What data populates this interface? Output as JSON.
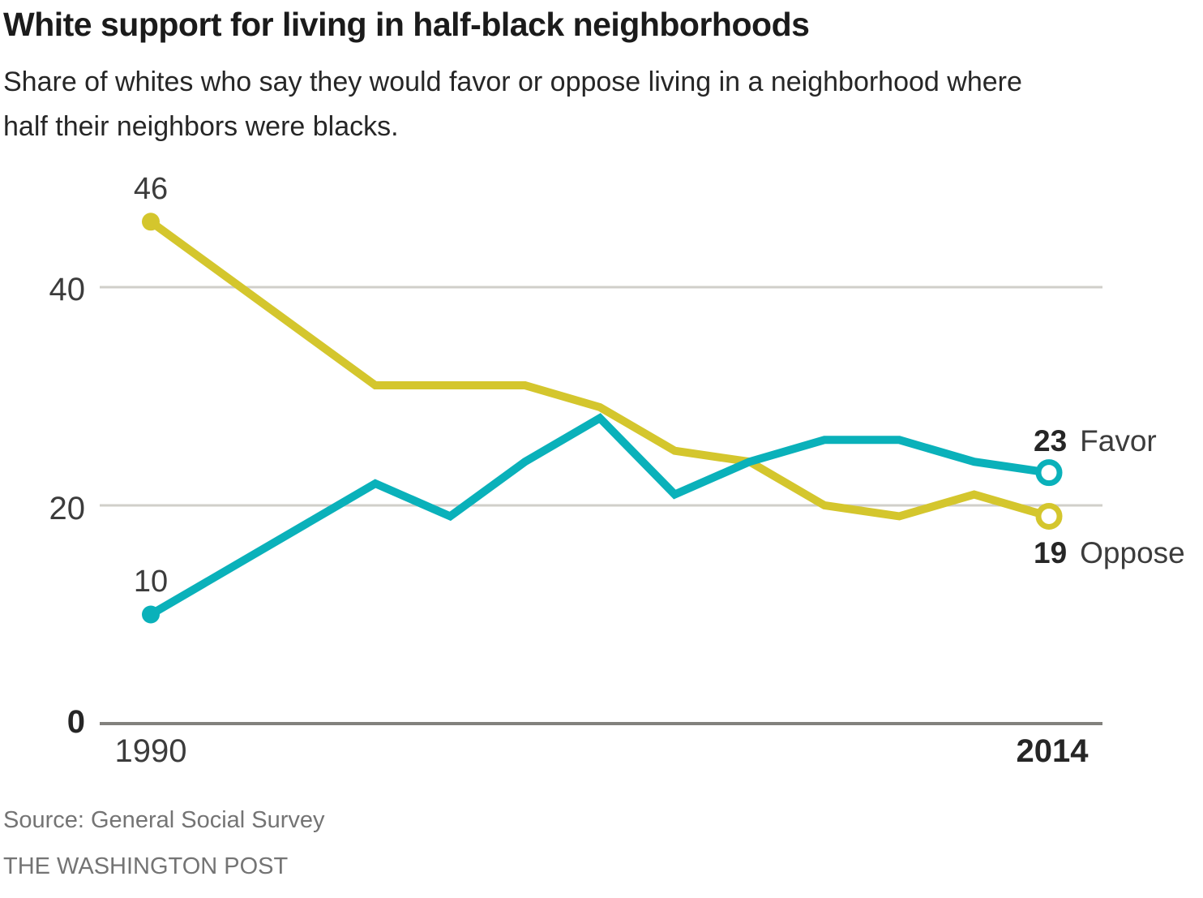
{
  "header": {
    "title": "White support for living in half-black neighborhoods",
    "subtitle_line1": "Share of whites who say they would favor or oppose living in a neighborhood where",
    "subtitle_line2": "half their neighbors were blacks."
  },
  "chart_data": {
    "type": "line",
    "title": "White support for living in half-black neighborhoods",
    "x": [
      1990,
      1996,
      1998,
      2000,
      2002,
      2004,
      2006,
      2008,
      2010,
      2012,
      2014
    ],
    "series": [
      {
        "name": "Oppose",
        "color": "#d4c62d",
        "values": [
          46,
          31,
          31,
          31,
          29,
          25,
          24,
          20,
          19,
          21,
          19
        ]
      },
      {
        "name": "Favor",
        "color": "#0ab1ba",
        "values": [
          10,
          22,
          19,
          24,
          28,
          21,
          24,
          26,
          26,
          24,
          23
        ]
      }
    ],
    "y_gridlines": [
      20,
      40
    ],
    "ylim": [
      0,
      48
    ],
    "xlim": [
      1990,
      2014
    ],
    "grid": "on",
    "legend_position": "end-of-line"
  },
  "axis": {
    "y_40": "40",
    "y_20": "20",
    "y_0": "0",
    "x_start": "1990",
    "x_end": "2014"
  },
  "annotations": {
    "oppose_start_value": "46",
    "favor_start_value": "10",
    "favor_end_value": "23",
    "favor_end_name": "Favor",
    "oppose_end_value": "19",
    "oppose_end_name": "Oppose"
  },
  "footer": {
    "source": "Source: General Social Survey",
    "credit": "THE WASHINGTON POST"
  },
  "colors": {
    "favor": "#0ab1ba",
    "oppose": "#d4c62d",
    "grid": "#d0cfca",
    "baseline": "#82817d"
  }
}
